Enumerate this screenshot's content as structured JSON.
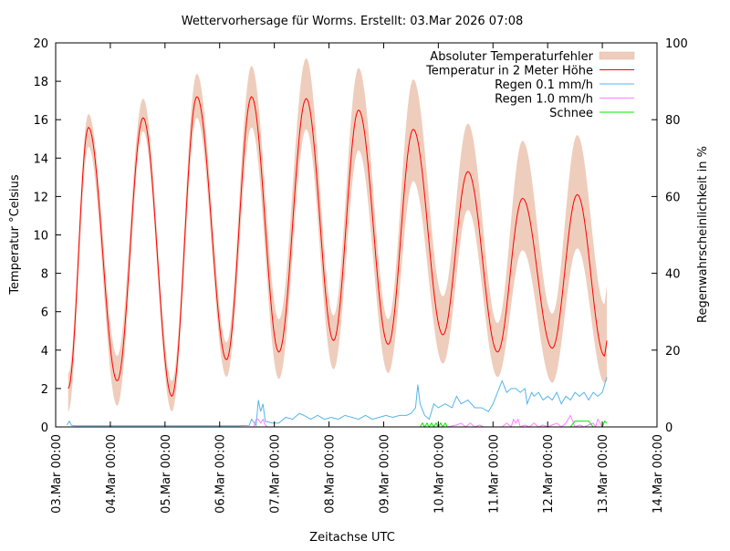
{
  "chart_data": {
    "type": "line",
    "title": "Wettervorhersage für Worms. Erstellt: 03.Mar 2026 07:08",
    "xlabel": "Zeitachse UTC",
    "ylabel": "Temperatur °Celsius",
    "y2label": "Regenwahrscheinlichkeit in %",
    "x_unit": "hours since 03.Mar 00:00",
    "xlim": [
      0,
      264
    ],
    "ylim": [
      0,
      20
    ],
    "y2lim": [
      0,
      100
    ],
    "grid": false,
    "legend_position": "top-right",
    "x_ticks": [
      "03.Mar 00:00",
      "04.Mar 00:00",
      "05.Mar 00:00",
      "06.Mar 00:00",
      "07.Mar 00:00",
      "08.Mar 00:00",
      "09.Mar 00:00",
      "10.Mar 00:00",
      "11.Mar 00:00",
      "12.Mar 00:00",
      "13.Mar 00:00",
      "14.Mar 00:00"
    ],
    "y_ticks": [
      "0",
      "2",
      "4",
      "6",
      "8",
      "10",
      "12",
      "14",
      "16",
      "18",
      "20"
    ],
    "y2_ticks": [
      "0",
      "20",
      "40",
      "60",
      "80",
      "100"
    ],
    "legend": [
      "Absoluter Temperaturfehler",
      "Temperatur in 2 Meter Höhe",
      "Regen 0.1 mm/h",
      "Regen 1.0 mm/h",
      "Schnee"
    ],
    "colors": {
      "band": "#efcdbc",
      "temperature": "#ff0000",
      "rain01": "#56b4e9",
      "rain10": "#ff80ff",
      "snow": "#00ee00"
    },
    "temperature": {
      "x": [
        5.5,
        14.4,
        27,
        38.4,
        51,
        62,
        75,
        86,
        98,
        110,
        122,
        133,
        146,
        157,
        170,
        181,
        194,
        205,
        218,
        229,
        241,
        242
      ],
      "y": [
        2.0,
        15.6,
        2.4,
        16.1,
        1.6,
        17.2,
        3.5,
        17.2,
        3.9,
        17.1,
        4.5,
        16.5,
        4.3,
        15.5,
        4.8,
        13.3,
        3.9,
        11.9,
        4.1,
        12.1,
        3.7,
        4.5
      ],
      "lower": [
        0.8,
        14.6,
        1.1,
        15.4,
        0.8,
        16.1,
        2.6,
        15.6,
        2.5,
        15.5,
        3.0,
        14.4,
        2.8,
        12.8,
        3.3,
        11.3,
        2.6,
        9.2,
        2.3,
        9.3,
        2.3,
        2.4
      ],
      "upper": [
        2.8,
        16.3,
        3.7,
        17.1,
        2.4,
        18.4,
        4.4,
        18.8,
        5.6,
        19.2,
        5.8,
        18.7,
        5.6,
        18.1,
        6.8,
        15.8,
        5.4,
        14.9,
        5.9,
        15.2,
        6.4,
        7.4
      ]
    },
    "rain01": {
      "x": [
        5,
        6,
        7,
        8,
        30,
        55,
        80,
        85,
        86,
        88,
        89,
        90,
        91,
        92,
        95,
        98,
        101,
        104,
        107,
        109,
        112,
        115,
        118,
        121,
        124,
        127,
        130,
        133,
        136,
        139,
        142,
        145,
        148,
        151,
        154,
        156,
        158,
        159,
        160,
        162,
        164,
        166,
        168,
        171,
        174,
        176,
        178,
        181,
        184,
        187,
        190,
        192,
        194,
        196,
        198,
        200,
        202,
        204,
        206,
        207,
        209,
        210,
        212,
        214,
        216,
        218,
        220,
        222,
        224,
        226,
        228,
        230,
        232,
        234,
        236,
        238,
        240,
        242
      ],
      "y": [
        0.5,
        1.5,
        0.4,
        0.3,
        0.3,
        0.3,
        0.3,
        0.4,
        2,
        0.4,
        7,
        4,
        6,
        1.5,
        1,
        1,
        2.5,
        2,
        3.5,
        3,
        2,
        3,
        2,
        2.5,
        2,
        3,
        2.5,
        2,
        3,
        2,
        2.5,
        3,
        2.5,
        3,
        3,
        3.5,
        5,
        11,
        6,
        3,
        2,
        6,
        5,
        6,
        5,
        8,
        6,
        7,
        5,
        5,
        4,
        6,
        9,
        12,
        9,
        10,
        10,
        9,
        10,
        6,
        9,
        8,
        9,
        7,
        8,
        7,
        9,
        6,
        8,
        7,
        9,
        8,
        9,
        7,
        9,
        8,
        9,
        13
      ]
    },
    "rain10": {
      "x": [
        84,
        87,
        88,
        89,
        90,
        91,
        92,
        93,
        95,
        150,
        172,
        176,
        178,
        180,
        182,
        184,
        186,
        188,
        190,
        192,
        194,
        196,
        198,
        200,
        201,
        202,
        203,
        204,
        206,
        208,
        210,
        212,
        214,
        216,
        218,
        220,
        222,
        224,
        226,
        228,
        230,
        232,
        234,
        236,
        237,
        238,
        239,
        240,
        242
      ],
      "y": [
        0,
        0,
        2,
        2,
        1,
        2,
        0.5,
        0,
        0,
        0,
        0,
        0.5,
        1,
        0,
        1,
        0,
        0.5,
        0,
        0,
        0,
        0,
        0,
        1,
        0,
        2,
        1,
        2,
        0,
        0.5,
        0,
        1,
        0,
        0.5,
        0,
        0.5,
        1,
        0,
        1,
        3,
        0,
        0.5,
        0,
        0.5,
        1,
        0,
        2,
        1,
        0,
        0
      ]
    },
    "snow": {
      "x": [
        160,
        161,
        162,
        163,
        164,
        165,
        166,
        167,
        168,
        169,
        170,
        171,
        172,
        175,
        180,
        190,
        200,
        214,
        216,
        218,
        220,
        222,
        224,
        226,
        228,
        230,
        232,
        234,
        236,
        238,
        240,
        241,
        242
      ],
      "y": [
        0,
        1,
        0,
        1,
        0,
        1,
        0,
        1,
        0,
        1,
        0,
        1,
        0,
        0,
        0,
        0,
        0,
        0,
        0,
        0,
        0,
        0,
        0,
        0,
        1.5,
        1.5,
        1.5,
        1.5,
        0,
        0,
        0,
        1.5,
        1
      ]
    }
  }
}
